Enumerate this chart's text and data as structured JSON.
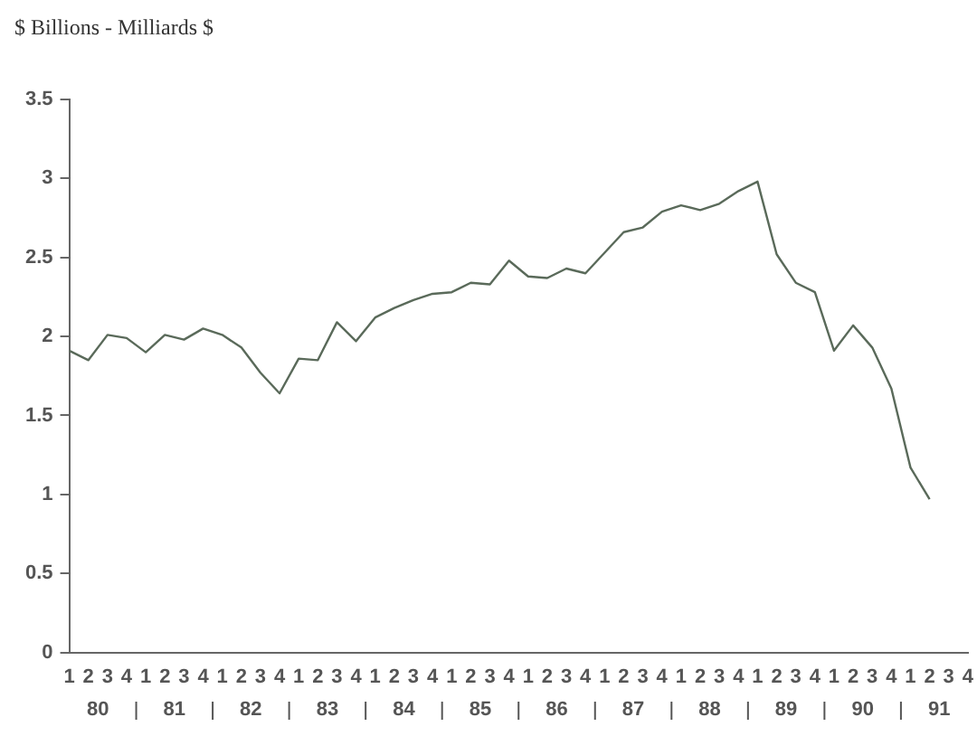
{
  "chart_data": {
    "type": "line",
    "ylabel": "$ Billions - Milliards $",
    "categories": [
      "1",
      "2",
      "3",
      "4",
      "1",
      "2",
      "3",
      "4",
      "1",
      "2",
      "3",
      "4",
      "1",
      "2",
      "3",
      "4",
      "1",
      "2",
      "3",
      "4",
      "1",
      "2",
      "3",
      "4",
      "1",
      "2",
      "3",
      "4",
      "1",
      "2",
      "3",
      "4",
      "1",
      "2",
      "3",
      "4",
      "1",
      "2",
      "3",
      "4",
      "1",
      "2",
      "3",
      "4",
      "1",
      "2",
      "3",
      "4"
    ],
    "annotations": [
      "80",
      "81",
      "82",
      "83",
      "84",
      "85",
      "86",
      "87",
      "88",
      "89",
      "90",
      "91"
    ],
    "series": [
      {
        "color": "#5a6a5a",
        "values": [
          1.91,
          1.85,
          2.01,
          1.99,
          1.9,
          2.01,
          1.98,
          2.05,
          2.01,
          1.93,
          1.77,
          1.64,
          1.86,
          1.85,
          2.09,
          1.97,
          2.12,
          2.18,
          2.23,
          2.27,
          2.28,
          2.34,
          2.33,
          2.48,
          2.38,
          2.37,
          2.43,
          2.4,
          2.53,
          2.66,
          2.69,
          2.79,
          2.83,
          2.8,
          2.84,
          2.92,
          2.98,
          2.52,
          2.34,
          2.28,
          1.91,
          2.07,
          1.93,
          1.67,
          1.17,
          0.97,
          null,
          null
        ]
      }
    ],
    "ylim": [
      0,
      3.5
    ],
    "yticks": [
      0,
      0.5,
      1,
      1.5,
      2,
      2.5,
      3,
      3.5
    ],
    "grid": false,
    "legend": false,
    "marker": "none",
    "line_style": "solid"
  }
}
